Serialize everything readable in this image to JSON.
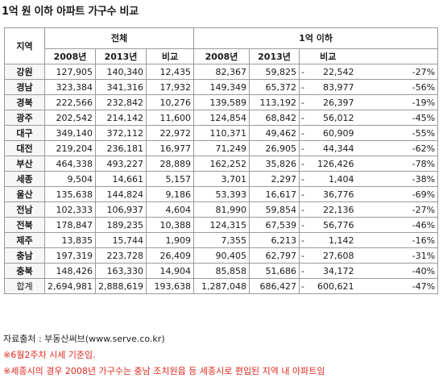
{
  "title": "1억 원 이하 아파트 가구수 비교",
  "header": {
    "region": "지역",
    "group_all": "전체",
    "group_under": "1억 이하",
    "col_2008": "2008년",
    "col_2013": "2013년",
    "col_compare": "비교"
  },
  "rows": [
    {
      "region": "강원",
      "all_2008": "127,905",
      "all_2013": "140,340",
      "all_diff": "12,435",
      "u_2008": "82,367",
      "u_2013": "59,825",
      "u_sign": "-",
      "u_diff": "22,542",
      "u_pct": "-27%"
    },
    {
      "region": "경남",
      "all_2008": "323,384",
      "all_2013": "341,316",
      "all_diff": "17,932",
      "u_2008": "149,349",
      "u_2013": "65,372",
      "u_sign": "-",
      "u_diff": "83,977",
      "u_pct": "-56%"
    },
    {
      "region": "경북",
      "all_2008": "222,566",
      "all_2013": "232,842",
      "all_diff": "10,276",
      "u_2008": "139,589",
      "u_2013": "113,192",
      "u_sign": "-",
      "u_diff": "26,397",
      "u_pct": "-19%"
    },
    {
      "region": "광주",
      "all_2008": "202,542",
      "all_2013": "214,142",
      "all_diff": "11,600",
      "u_2008": "124,854",
      "u_2013": "68,842",
      "u_sign": "-",
      "u_diff": "56,012",
      "u_pct": "-45%"
    },
    {
      "region": "대구",
      "all_2008": "349,140",
      "all_2013": "372,112",
      "all_diff": "22,972",
      "u_2008": "110,371",
      "u_2013": "49,462",
      "u_sign": "-",
      "u_diff": "60,909",
      "u_pct": "-55%"
    },
    {
      "region": "대전",
      "all_2008": "219,204",
      "all_2013": "236,181",
      "all_diff": "16,977",
      "u_2008": "71,249",
      "u_2013": "26,905",
      "u_sign": "-",
      "u_diff": "44,344",
      "u_pct": "-62%"
    },
    {
      "region": "부산",
      "all_2008": "464,338",
      "all_2013": "493,227",
      "all_diff": "28,889",
      "u_2008": "162,252",
      "u_2013": "35,826",
      "u_sign": "-",
      "u_diff": "126,426",
      "u_pct": "-78%"
    },
    {
      "region": "세종",
      "all_2008": "9,504",
      "all_2013": "14,661",
      "all_diff": "5,157",
      "u_2008": "3,701",
      "u_2013": "2,297",
      "u_sign": "-",
      "u_diff": "1,404",
      "u_pct": "-38%"
    },
    {
      "region": "울산",
      "all_2008": "135,638",
      "all_2013": "144,824",
      "all_diff": "9,186",
      "u_2008": "53,393",
      "u_2013": "16,617",
      "u_sign": "-",
      "u_diff": "36,776",
      "u_pct": "-69%"
    },
    {
      "region": "전남",
      "all_2008": "102,333",
      "all_2013": "106,937",
      "all_diff": "4,604",
      "u_2008": "81,990",
      "u_2013": "59,854",
      "u_sign": "-",
      "u_diff": "22,136",
      "u_pct": "-27%"
    },
    {
      "region": "전북",
      "all_2008": "178,847",
      "all_2013": "189,235",
      "all_diff": "10,388",
      "u_2008": "124,315",
      "u_2013": "67,539",
      "u_sign": "-",
      "u_diff": "56,776",
      "u_pct": "-46%"
    },
    {
      "region": "제주",
      "all_2008": "13,835",
      "all_2013": "15,744",
      "all_diff": "1,909",
      "u_2008": "7,355",
      "u_2013": "6,213",
      "u_sign": "-",
      "u_diff": "1,142",
      "u_pct": "-16%"
    },
    {
      "region": "충남",
      "all_2008": "197,319",
      "all_2013": "223,728",
      "all_diff": "26,409",
      "u_2008": "90,405",
      "u_2013": "62,797",
      "u_sign": "-",
      "u_diff": "27,608",
      "u_pct": "-31%"
    },
    {
      "region": "충북",
      "all_2008": "148,426",
      "all_2013": "163,330",
      "all_diff": "14,904",
      "u_2008": "85,858",
      "u_2013": "51,686",
      "u_sign": "-",
      "u_diff": "34,172",
      "u_pct": "-40%"
    },
    {
      "region": "합계",
      "all_2008": "2,694,981",
      "all_2013": "2,888,619",
      "all_diff": "193,638",
      "u_2008": "1,287,048",
      "u_2013": "686,427",
      "u_sign": "-",
      "u_diff": "600,621",
      "u_pct": "-47%"
    }
  ],
  "notes": {
    "source": "자료출처 : 부동산써브(www.serve.co.kr)",
    "note1": "※6월2주차 시세 기준임.",
    "note2": "※세종시의 경우 2008년 가구수는 충남 조치원읍 등 세종시로 편입된 지역 내 아파트임"
  }
}
